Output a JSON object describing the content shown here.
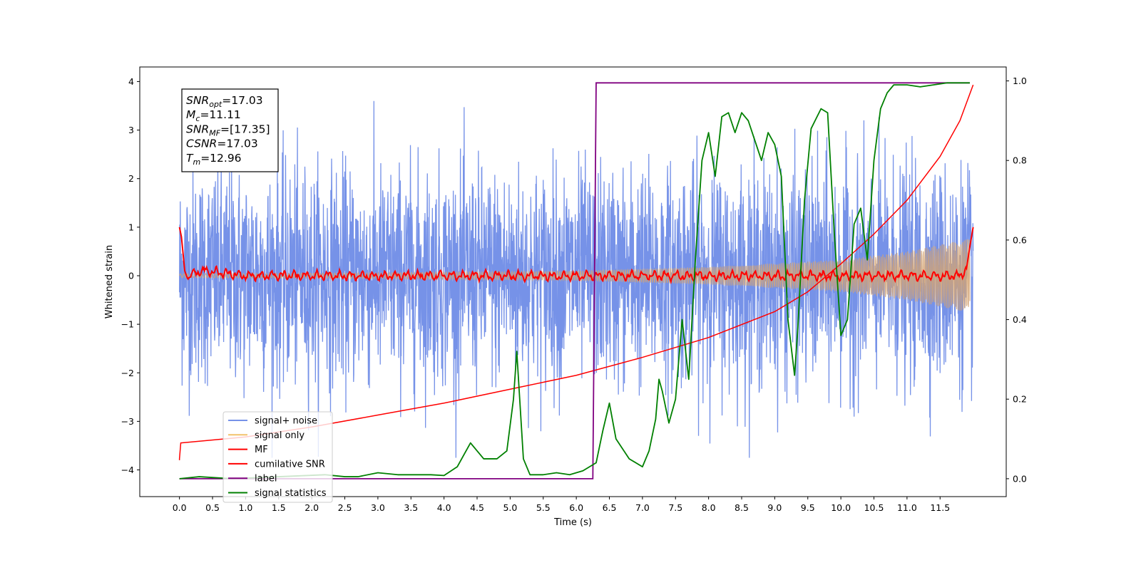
{
  "chart_data": {
    "type": "line",
    "title": "",
    "xlabel": "Time (s)",
    "ylabel": "Whitened strain",
    "xlim": [
      -0.6,
      12.5
    ],
    "ylim": [
      -4.55,
      4.3
    ],
    "y2lim": [
      -0.045,
      1.035
    ],
    "xticks": [
      "0.0",
      "0.5",
      "1.0",
      "1.5",
      "2.0",
      "2.5",
      "3.0",
      "3.5",
      "4.0",
      "4.5",
      "5.0",
      "5.5",
      "6.0",
      "6.5",
      "7.0",
      "7.5",
      "8.0",
      "8.5",
      "9.0",
      "9.5",
      "10.0",
      "10.5",
      "11.0",
      "11.5"
    ],
    "yticks": [
      "−4",
      "−3",
      "−2",
      "−1",
      "0",
      "1",
      "2",
      "3",
      "4"
    ],
    "y2ticks": [
      "0.0",
      "0.2",
      "0.4",
      "0.6",
      "0.8",
      "1.0"
    ],
    "grid": false,
    "legend": {
      "position": "lower-left",
      "entries": [
        {
          "label": "signal+ noise",
          "color": "#7692e8"
        },
        {
          "label": "signal only",
          "color": "#f2c26b"
        },
        {
          "label": "MF",
          "color": "#ff0000"
        },
        {
          "label": "cumilative SNR",
          "color": "#ff0000"
        },
        {
          "label": "label",
          "color": "#800080"
        },
        {
          "label": "signal statistics",
          "color": "#008000"
        }
      ]
    },
    "annotation": {
      "lines": [
        {
          "base": "SNR",
          "sub": "opt",
          "value": "=17.03"
        },
        {
          "base": "M",
          "sub": "c",
          "value": "=11.11"
        },
        {
          "base": "SNR",
          "sub": "MF",
          "value": "=[17.35]"
        },
        {
          "base": "CSNR",
          "sub": "",
          "value": "=17.03"
        },
        {
          "base": "T",
          "sub": "m",
          "value": "=12.96"
        }
      ]
    },
    "series": [
      {
        "name": "signal+ noise",
        "axis": "left",
        "color": "#7692e8",
        "description": "whitened strain noise, approx. within [-3.7, 3.6], x from 0.0 to 12.0"
      },
      {
        "name": "signal only",
        "axis": "left",
        "color": "#d4a373",
        "envelope": {
          "x": [
            0.0,
            3.0,
            6.0,
            8.0,
            10.0,
            11.0,
            11.9
          ],
          "amp": [
            0.04,
            0.06,
            0.1,
            0.18,
            0.33,
            0.5,
            0.75
          ]
        }
      },
      {
        "name": "MF",
        "axis": "left",
        "color": "#ff0000",
        "points": {
          "x": [
            0.0,
            0.03,
            0.08,
            0.12,
            0.2,
            0.4,
            1.0,
            11.8,
            11.9,
            11.95,
            12.0
          ],
          "y": [
            1.0,
            0.8,
            0.1,
            -0.05,
            0.05,
            0.1,
            0.0,
            0.0,
            0.15,
            0.6,
            1.0
          ]
        }
      },
      {
        "name": "cumilative SNR",
        "axis": "right",
        "color": "#ff0000",
        "points": {
          "x": [
            0.0,
            0.02,
            1.0,
            2.0,
            3.0,
            4.0,
            5.0,
            6.0,
            7.0,
            8.0,
            9.0,
            9.5,
            10.0,
            10.5,
            11.0,
            11.5,
            11.8,
            12.0
          ],
          "y": [
            0.05,
            0.09,
            0.105,
            0.13,
            0.16,
            0.19,
            0.225,
            0.26,
            0.305,
            0.355,
            0.42,
            0.47,
            0.54,
            0.615,
            0.7,
            0.81,
            0.9,
            0.99
          ]
        }
      },
      {
        "name": "label",
        "axis": "right",
        "color": "#800080",
        "points": {
          "x": [
            0.0,
            6.25,
            6.3,
            11.95
          ],
          "y": [
            0.0,
            0.0,
            0.995,
            0.995
          ]
        }
      },
      {
        "name": "signal statistics",
        "axis": "right",
        "color": "#008000",
        "points": {
          "x": [
            0.0,
            0.3,
            0.8,
            1.5,
            2.2,
            2.5,
            2.7,
            3.0,
            3.3,
            3.5,
            3.8,
            4.0,
            4.2,
            4.4,
            4.5,
            4.6,
            4.8,
            4.95,
            5.05,
            5.1,
            5.2,
            5.3,
            5.5,
            5.7,
            5.9,
            6.1,
            6.3,
            6.4,
            6.5,
            6.6,
            6.8,
            7.0,
            7.1,
            7.2,
            7.25,
            7.3,
            7.4,
            7.5,
            7.6,
            7.7,
            7.8,
            7.9,
            8.0,
            8.1,
            8.2,
            8.3,
            8.4,
            8.5,
            8.6,
            8.7,
            8.8,
            8.9,
            9.0,
            9.1,
            9.2,
            9.3,
            9.35,
            9.45,
            9.55,
            9.7,
            9.8,
            9.9,
            10.0,
            10.1,
            10.2,
            10.3,
            10.4,
            10.5,
            10.6,
            10.7,
            10.8,
            10.9,
            11.0,
            11.2,
            11.4,
            11.6,
            11.8,
            11.95
          ],
          "y": [
            0.0,
            0.005,
            0.0,
            0.005,
            0.01,
            0.005,
            0.005,
            0.015,
            0.01,
            0.01,
            0.01,
            0.008,
            0.03,
            0.09,
            0.07,
            0.05,
            0.05,
            0.07,
            0.2,
            0.32,
            0.05,
            0.01,
            0.01,
            0.015,
            0.01,
            0.02,
            0.04,
            0.12,
            0.19,
            0.1,
            0.05,
            0.03,
            0.07,
            0.15,
            0.25,
            0.22,
            0.14,
            0.2,
            0.4,
            0.25,
            0.55,
            0.8,
            0.87,
            0.76,
            0.91,
            0.92,
            0.87,
            0.92,
            0.9,
            0.85,
            0.8,
            0.87,
            0.84,
            0.76,
            0.4,
            0.26,
            0.38,
            0.7,
            0.88,
            0.93,
            0.92,
            0.62,
            0.36,
            0.4,
            0.64,
            0.68,
            0.55,
            0.8,
            0.93,
            0.97,
            0.99,
            0.99,
            0.99,
            0.985,
            0.99,
            0.995,
            0.995,
            0.995
          ]
        }
      }
    ]
  }
}
